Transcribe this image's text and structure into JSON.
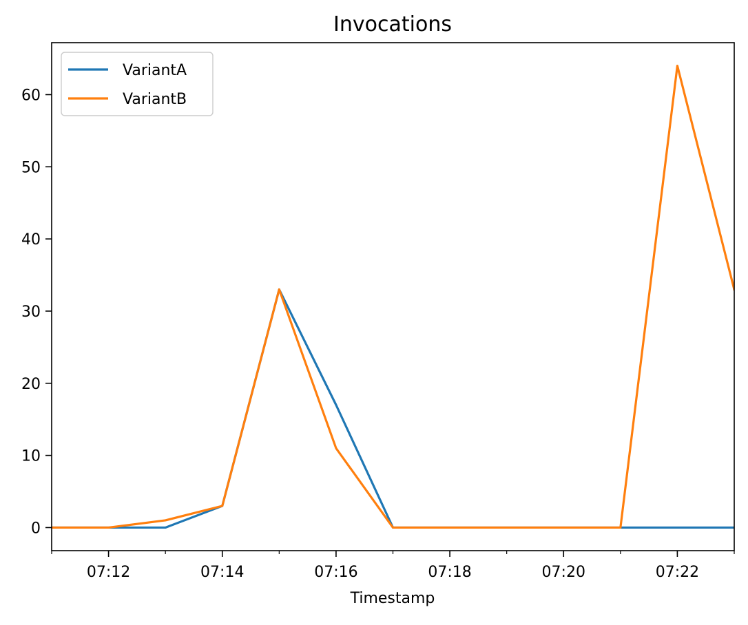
{
  "chart_data": {
    "type": "line",
    "title": "Invocations",
    "xlabel": "Timestamp",
    "ylabel": "",
    "x": [
      "07:11",
      "07:12",
      "07:13",
      "07:14",
      "07:15",
      "07:16",
      "07:17",
      "07:18",
      "07:19",
      "07:20",
      "07:21",
      "07:22",
      "07:23"
    ],
    "x_minutes": [
      11,
      12,
      13,
      14,
      15,
      16,
      17,
      18,
      19,
      20,
      21,
      22,
      23
    ],
    "xlim": [
      "07:11",
      "07:23"
    ],
    "ylim": [
      -3.2,
      67.2
    ],
    "xticks": [
      {
        "at": 12,
        "label": "07:12"
      },
      {
        "at": 14,
        "label": "07:14"
      },
      {
        "at": 16,
        "label": "07:16"
      },
      {
        "at": 18,
        "label": "07:18"
      },
      {
        "at": 20,
        "label": "07:20"
      },
      {
        "at": 22,
        "label": "07:22"
      }
    ],
    "yticks": [
      {
        "at": 0,
        "label": "0"
      },
      {
        "at": 10,
        "label": "10"
      },
      {
        "at": 20,
        "label": "20"
      },
      {
        "at": 30,
        "label": "30"
      },
      {
        "at": 40,
        "label": "40"
      },
      {
        "at": 50,
        "label": "50"
      },
      {
        "at": 60,
        "label": "60"
      }
    ],
    "grid": false,
    "legend_position": "upper left",
    "series": [
      {
        "name": "VariantA",
        "color": "#1f77b4",
        "values": [
          0,
          0,
          0,
          3,
          33,
          17,
          0,
          0,
          0,
          0,
          0,
          0,
          0
        ]
      },
      {
        "name": "VariantB",
        "color": "#ff7f0e",
        "values": [
          0,
          0,
          1,
          3,
          33,
          11,
          0,
          0,
          0,
          0,
          0,
          64,
          33
        ]
      }
    ]
  }
}
